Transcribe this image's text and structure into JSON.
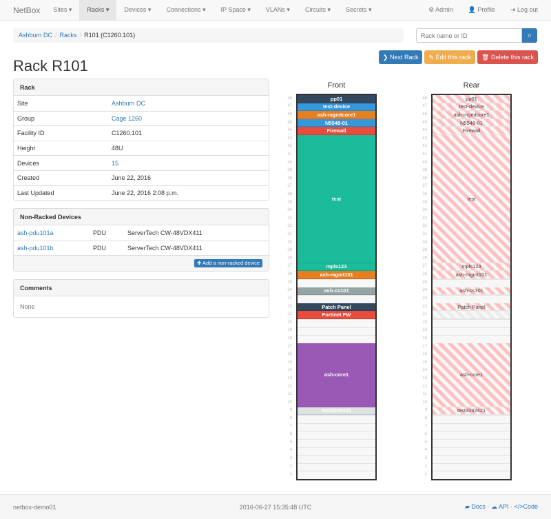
{
  "nav": {
    "brand": "NetBox",
    "items": [
      "Sites ▾",
      "Racks ▾",
      "Devices ▾",
      "Connections ▾",
      "IP Space ▾",
      "VLANs ▾",
      "Circuits ▾",
      "Secrets ▾"
    ],
    "active": "Racks ▾",
    "right": [
      "⚙ Admin",
      "👤 Profile",
      "⇥ Log out"
    ]
  },
  "breadcrumb": [
    "Ashburn DC",
    "Racks",
    "R101 (C1260.101)"
  ],
  "search": {
    "placeholder": "Rack name or ID",
    "icon": "search-icon"
  },
  "buttons": {
    "next": "❯ Next Rack",
    "edit": "✎ Edit this rack",
    "delete": "🗑 Delete this rack"
  },
  "colors": {
    "primary": "#337ab7",
    "warning": "#f0ad4e",
    "danger": "#d9534f"
  },
  "title": "Rack R101",
  "rack_panel": {
    "heading": "Rack",
    "rows": [
      {
        "k": "Site",
        "v": "Ashburn DC",
        "link": true
      },
      {
        "k": "Group",
        "v": "Cage 1260",
        "link": true
      },
      {
        "k": "Facility ID",
        "v": "C1260.101"
      },
      {
        "k": "Height",
        "v": "48U"
      },
      {
        "k": "Devices",
        "v": "15",
        "link": true
      },
      {
        "k": "Created",
        "v": "June 22, 2016"
      },
      {
        "k": "Last Updated",
        "v": "June 22, 2016 2:08 p.m."
      }
    ]
  },
  "nonracked": {
    "heading": "Non-Racked Devices",
    "rows": [
      {
        "name": "ash-pdu101a",
        "role": "PDU",
        "type": "ServerTech CW-48VDX411"
      },
      {
        "name": "ash-pdu101b",
        "role": "PDU",
        "type": "ServerTech CW-48VDX411"
      }
    ],
    "add": "✚ Add a non-racked device"
  },
  "comments": {
    "heading": "Comments",
    "body": "None"
  },
  "rack": {
    "height": 48,
    "front_label": "Front",
    "rear_label": "Rear",
    "front": [
      {
        "name": "pp01",
        "top": 48,
        "u": 1,
        "color": "#34495e"
      },
      {
        "name": "test-device",
        "top": 47,
        "u": 1,
        "color": "#3498db"
      },
      {
        "name": "ash-mgmtcore1",
        "top": 46,
        "u": 1,
        "color": "#e67e22"
      },
      {
        "name": "N5548-01",
        "top": 45,
        "u": 1,
        "color": "#3498db"
      },
      {
        "name": "Firewall",
        "top": 44,
        "u": 1,
        "color": "#e74c3c"
      },
      {
        "name": "test",
        "top": 43,
        "u": 16,
        "color": "#1abc9c"
      },
      {
        "name": "mpls123",
        "top": 27,
        "u": 1,
        "color": "#1abc9c"
      },
      {
        "name": "ash-mgmt101",
        "top": 26,
        "u": 1,
        "color": "#e67e22"
      },
      {
        "name": "ash-cs101",
        "top": 24,
        "u": 1,
        "color": "#95a5a6"
      },
      {
        "name": "Patch Panel",
        "top": 22,
        "u": 1,
        "color": "#34495e"
      },
      {
        "name": "Fortinet FW",
        "top": 21,
        "u": 1,
        "color": "#e74c3c"
      },
      {
        "name": "ash-core1",
        "top": 17,
        "u": 8,
        "color": "#9b59b6"
      },
      {
        "name": "test3232421",
        "top": 9,
        "u": 1,
        "color": "#dde2e4"
      }
    ],
    "rear": [
      {
        "name": "pp01",
        "top": 48,
        "u": 1
      },
      {
        "name": "test-device",
        "top": 47,
        "u": 1
      },
      {
        "name": "ash-mgmtcore1",
        "top": 46,
        "u": 1
      },
      {
        "name": "N5548-01",
        "top": 45,
        "u": 1
      },
      {
        "name": "Firewall",
        "top": 44,
        "u": 1
      },
      {
        "name": "test",
        "top": 43,
        "u": 16
      },
      {
        "name": "mpls123",
        "top": 27,
        "u": 1
      },
      {
        "name": "ash-mgmt101",
        "top": 26,
        "u": 1
      },
      {
        "name": "ash-cs101",
        "top": 24,
        "u": 1
      },
      {
        "name": "Patch Panel",
        "top": 22,
        "u": 1
      },
      {
        "name": "",
        "top": 21,
        "u": 1,
        "reserved": true
      },
      {
        "name": "ash-core1",
        "top": 17,
        "u": 8
      },
      {
        "name": "test3232421",
        "top": 9,
        "u": 1
      }
    ]
  },
  "footer": {
    "host": "netbox-demo01",
    "time": "2016-06-27 15:35:48 UTC",
    "docs": "Docs",
    "api": "API",
    "code": "</>Code"
  }
}
